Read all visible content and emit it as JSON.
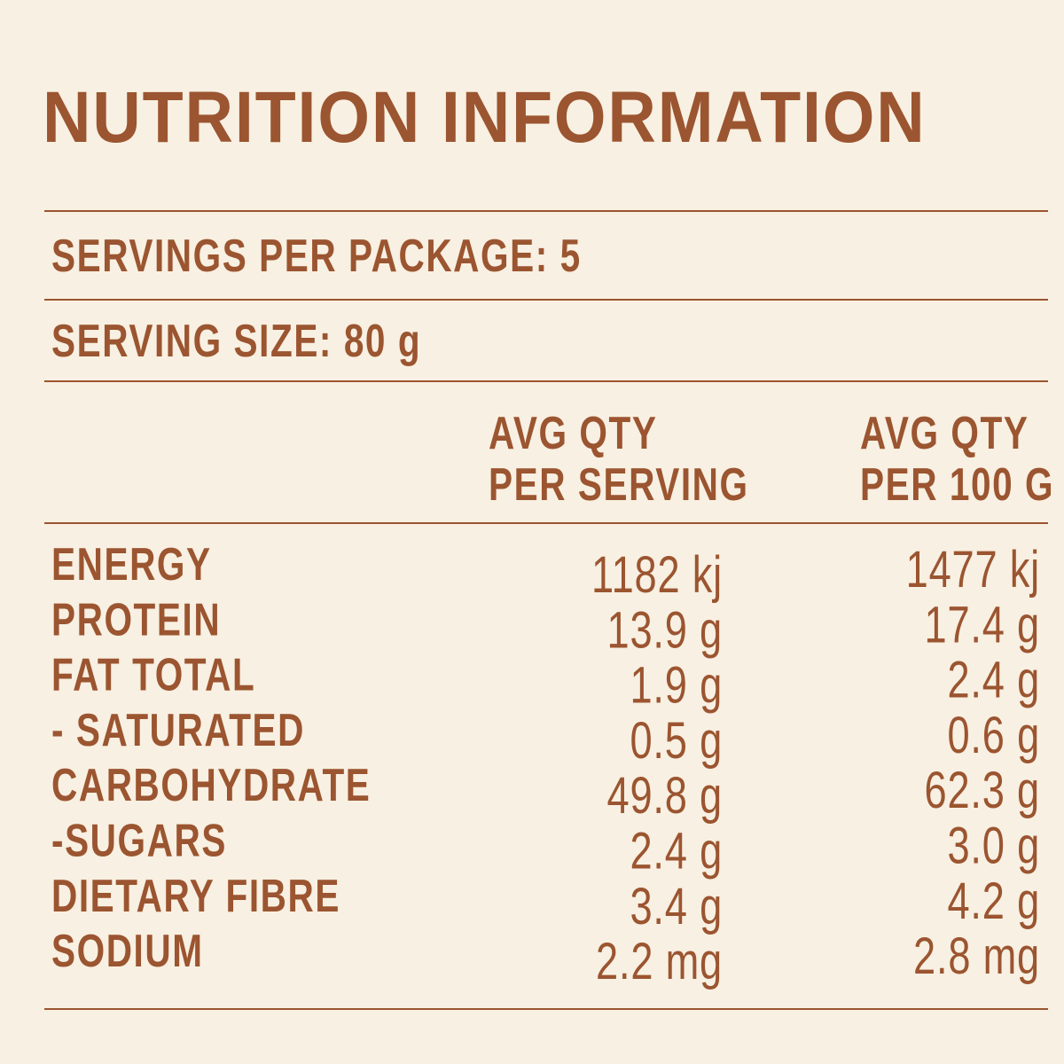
{
  "header": {
    "title": "NUTRITION INFORMATION"
  },
  "summary": {
    "servings_per_package": "SERVINGS PER PACKAGE: 5",
    "serving_size": "SERVING SIZE: 80 g"
  },
  "table": {
    "columns": [
      [
        "AVG QTY",
        "PER SERVING"
      ],
      [
        "AVG QTY",
        "PER 100 G"
      ]
    ],
    "rows": [
      [
        "ENERGY",
        "1182 kj",
        "1477 kj"
      ],
      [
        "PROTEIN",
        "13.9 g",
        "17.4 g"
      ],
      [
        "FAT TOTAL",
        "1.9 g",
        "2.4 g"
      ],
      [
        "- SATURATED",
        "0.5 g",
        "0.6 g"
      ],
      [
        "CARBOHYDRATE",
        "49.8 g",
        "62.3 g"
      ],
      [
        "-SUGARS",
        "2.4 g",
        "3.0 g"
      ],
      [
        "DIETARY FIBRE",
        "3.4 g",
        "4.2 g"
      ],
      [
        "SODIUM",
        "2.2 mg",
        "2.8 mg"
      ]
    ]
  }
}
